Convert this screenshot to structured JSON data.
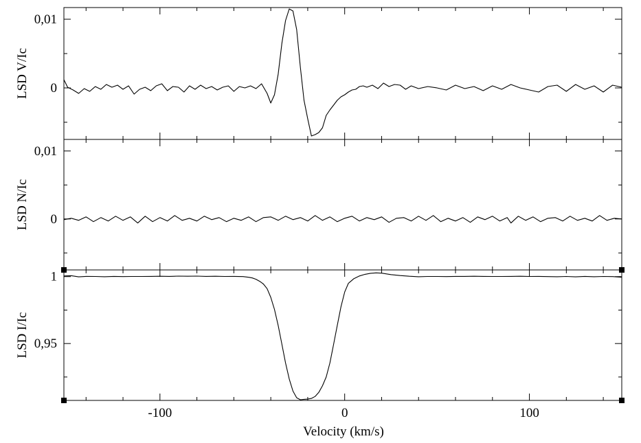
{
  "chart_data": {
    "type": "line",
    "x_label": "Velocity (km/s)",
    "x_range": [
      -152,
      150
    ],
    "x_ticks": [
      -100,
      0,
      100
    ],
    "x_tick_labels": [
      "-100",
      "0",
      "100"
    ],
    "grid": false,
    "panels": [
      {
        "id": "V",
        "ylabel": "LSD V/Ic",
        "ylim": [
          -0.0075,
          0.0117
        ],
        "y_ticks": [
          0,
          0.01
        ],
        "y_tick_labels": [
          "0",
          "0,01"
        ],
        "series": [
          {
            "x": [
              -152,
              -150,
              -147,
              -144,
              -141,
              -138,
              -135,
              -132,
              -129,
              -126,
              -123,
              -120,
              -117,
              -114,
              -111,
              -108,
              -105,
              -102,
              -99,
              -96,
              -93,
              -90,
              -87,
              -84,
              -81,
              -78,
              -75,
              -72,
              -69,
              -66,
              -63,
              -60,
              -57,
              -54,
              -51,
              -48,
              -45,
              -42,
              -40,
              -38,
              -36,
              -34,
              -32,
              -30,
              -28,
              -26,
              -24,
              -22,
              -20,
              -18,
              -16,
              -14,
              -12,
              -10,
              -8,
              -6,
              -4,
              -2,
              0,
              2,
              4,
              6,
              8,
              10,
              12,
              15,
              18,
              21,
              24,
              27,
              30,
              33,
              36,
              40,
              45,
              50,
              55,
              60,
              65,
              70,
              75,
              80,
              85,
              90,
              95,
              100,
              105,
              110,
              115,
              120,
              125,
              130,
              135,
              140,
              145,
              150
            ],
            "values": [
              0.0012,
              0.0001,
              -0.0003,
              -0.0008,
              -0.0001,
              -0.0005,
              0.0002,
              -0.0002,
              0.0005,
              0.0001,
              0.0004,
              -0.0002,
              0.0003,
              -0.0009,
              -0.0002,
              0.0001,
              -0.0004,
              0.0003,
              0.0006,
              -0.0004,
              0.0002,
              0.0001,
              -0.0006,
              0.0003,
              -0.0002,
              0.0004,
              -0.0001,
              0.0002,
              -0.0003,
              0.0001,
              0.0003,
              -0.0005,
              0.0002,
              0.0,
              0.0003,
              -0.0001,
              0.0006,
              -0.0008,
              -0.0022,
              -0.001,
              0.002,
              0.0065,
              0.0098,
              0.0115,
              0.0112,
              0.0085,
              0.003,
              -0.0018,
              -0.0045,
              -0.007,
              -0.0068,
              -0.0065,
              -0.0058,
              -0.004,
              -0.0032,
              -0.0025,
              -0.0018,
              -0.0013,
              -0.001,
              -0.0006,
              -0.0003,
              -0.0002,
              0.0002,
              0.0003,
              0.0001,
              0.0004,
              -0.0001,
              0.0007,
              0.0002,
              0.0005,
              0.0004,
              -0.0002,
              0.0003,
              -0.0001,
              0.0002,
              0.0,
              -0.0003,
              0.0004,
              -0.0001,
              0.0002,
              -0.0004,
              0.0003,
              -0.0002,
              0.0005,
              0.0,
              -0.0003,
              -0.0006,
              0.0002,
              0.0004,
              -0.0005,
              0.0005,
              -0.0002,
              0.0003,
              -0.0006,
              0.0004,
              0.0001
            ]
          }
        ]
      },
      {
        "id": "N",
        "ylabel": "LSD N/Ic",
        "ylim": [
          -0.0075,
          0.0117
        ],
        "y_ticks": [
          0,
          0.01
        ],
        "y_tick_labels": [
          "0",
          "0,01"
        ],
        "series": [
          {
            "x": [
              -152,
              -148,
              -144,
              -140,
              -136,
              -132,
              -128,
              -124,
              -120,
              -116,
              -112,
              -108,
              -104,
              -100,
              -96,
              -92,
              -88,
              -84,
              -80,
              -76,
              -72,
              -68,
              -64,
              -60,
              -56,
              -52,
              -48,
              -44,
              -40,
              -36,
              -32,
              -28,
              -24,
              -20,
              -16,
              -12,
              -8,
              -4,
              0,
              4,
              8,
              12,
              16,
              20,
              24,
              28,
              32,
              36,
              40,
              44,
              48,
              52,
              56,
              60,
              64,
              68,
              72,
              76,
              80,
              84,
              88,
              90,
              94,
              98,
              102,
              106,
              110,
              114,
              118,
              122,
              126,
              130,
              134,
              138,
              142,
              146,
              150
            ],
            "values": [
              -0.0001,
              0.0001,
              -0.0002,
              0.0003,
              -0.0004,
              0.0002,
              -0.0003,
              0.0004,
              -0.0002,
              0.0003,
              -0.0006,
              0.0004,
              -0.0004,
              0.0002,
              -0.0003,
              0.0005,
              -0.0002,
              0.0001,
              -0.0003,
              0.0004,
              -0.0001,
              0.0002,
              -0.0004,
              0.0001,
              -0.0002,
              0.0003,
              -0.0004,
              0.0002,
              0.0003,
              -0.0002,
              0.0004,
              -0.0001,
              0.0002,
              -0.0003,
              0.0005,
              -0.0002,
              0.0003,
              -0.0004,
              0.0001,
              0.0004,
              -0.0003,
              0.0002,
              -0.0001,
              0.0003,
              -0.0005,
              0.0001,
              0.0002,
              -0.0003,
              0.0004,
              -0.0002,
              0.0005,
              -0.0004,
              0.0001,
              -0.0003,
              0.0002,
              -0.0005,
              0.0003,
              -0.0001,
              0.0004,
              -0.0003,
              0.0002,
              -0.0006,
              0.0004,
              -0.0002,
              0.0003,
              -0.0004,
              0.0001,
              0.0002,
              -0.0003,
              0.0004,
              -0.0002,
              0.0001,
              -0.0003,
              0.0005,
              -0.0002,
              0.0001,
              0.0
            ]
          }
        ]
      },
      {
        "id": "I",
        "ylabel": "LSD I/Ic",
        "ylim": [
          0.9075,
          1.005
        ],
        "y_ticks": [
          0.95,
          1.0
        ],
        "y_tick_labels": [
          "0,95",
          "1"
        ],
        "series": [
          {
            "x": [
              -152,
              -148,
              -144,
              -140,
              -135,
              -130,
              -125,
              -120,
              -115,
              -110,
              -105,
              -100,
              -95,
              -90,
              -85,
              -80,
              -75,
              -70,
              -65,
              -60,
              -55,
              -52,
              -50,
              -48,
              -46,
              -44,
              -42,
              -40,
              -38,
              -36,
              -34,
              -32,
              -30,
              -28,
              -26,
              -24,
              -22,
              -20,
              -18,
              -16,
              -14,
              -12,
              -10,
              -8,
              -6,
              -4,
              -2,
              0,
              2,
              5,
              8,
              11,
              14,
              17,
              20,
              25,
              30,
              35,
              40,
              45,
              50,
              55,
              60,
              65,
              70,
              75,
              80,
              85,
              90,
              95,
              100,
              105,
              110,
              115,
              120,
              125,
              130,
              135,
              140,
              145,
              150
            ],
            "values": [
              1.0005,
              1.0007,
              0.9998,
              1.0002,
              1.0001,
              0.9999,
              1.0002,
              1.0,
              1.0001,
              1.0001,
              1.0002,
              1.0003,
              1.0002,
              1.0004,
              1.0003,
              1.0004,
              1.0002,
              1.0003,
              1.0001,
              1.0002,
              1.0,
              0.9995,
              0.999,
              0.998,
              0.9965,
              0.9945,
              0.991,
              0.9845,
              0.9755,
              0.9635,
              0.9495,
              0.9355,
              0.9235,
              0.9145,
              0.9095,
              0.908,
              0.9083,
              0.9085,
              0.909,
              0.9105,
              0.9135,
              0.9185,
              0.925,
              0.9355,
              0.9495,
              0.9635,
              0.9775,
              0.9885,
              0.995,
              0.9985,
              1.0005,
              1.0017,
              1.0025,
              1.0028,
              1.0026,
              1.0015,
              1.0008,
              1.0003,
              0.9999,
              1.0001,
              1.0001,
              1.0,
              1.0002,
              1.0002,
              1.0003,
              1.0002,
              1.0001,
              1.0001,
              1.0002,
              1.0003,
              1.0001,
              1.0002,
              1.0,
              0.9999,
              1.0001,
              0.9998,
              1.0002,
              0.9999,
              1.0001,
              1.0,
              0.9995
            ]
          }
        ]
      }
    ]
  }
}
